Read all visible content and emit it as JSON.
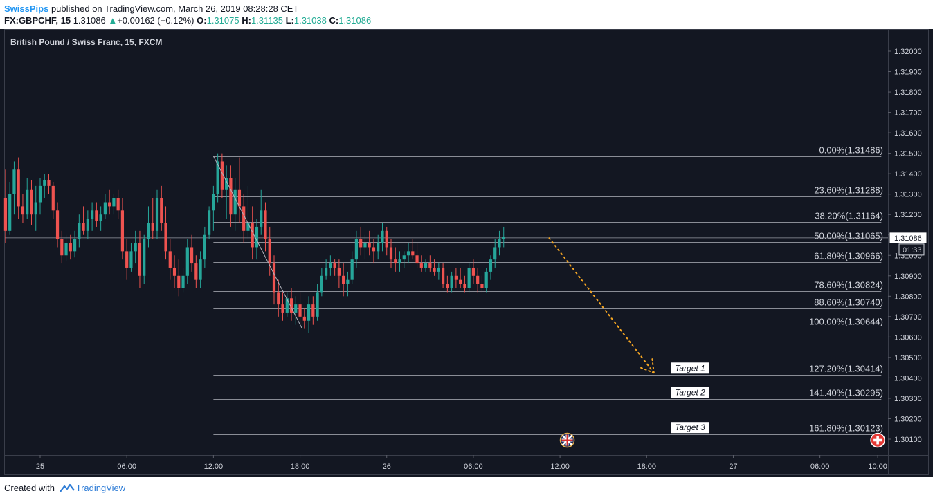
{
  "header": {
    "author": "SwissPips",
    "published": "published on TradingView.com, March 26, 2019 08:28:28 CET",
    "symbol": "FX:GBPCHF, 15",
    "last": "1.31086",
    "change": "+0.00162 (+0.12%)",
    "o_label": "O:",
    "o_value": "1.31075",
    "h_label": "H:",
    "h_value": "1.31135",
    "l_label": "L:",
    "l_value": "1.31038",
    "c_label": "C:",
    "c_value": "1.31086"
  },
  "footer": {
    "created_with": "Created with",
    "brand": "TradingView"
  },
  "colors": {
    "background": "#131722",
    "up": "#26a69a",
    "down": "#ef5350",
    "fib": "#8a8d96",
    "arrow": "#f5a623"
  },
  "chart_data": {
    "type": "candlestick",
    "title": "British Pound / Swiss Franc, 15, FXCM",
    "ylim": [
      1.3005,
      1.3215
    ],
    "y_ticks": [
      "1.32000",
      "1.31900",
      "1.31800",
      "1.31700",
      "1.31600",
      "1.31500",
      "1.31400",
      "1.31300",
      "1.31200",
      "1.31100",
      "1.31000",
      "1.30900",
      "1.30800",
      "1.30700",
      "1.30600",
      "1.30500",
      "1.30400",
      "1.30300",
      "1.30200",
      "1.30100"
    ],
    "x_ticks": [
      {
        "label": "25",
        "t": 0
      },
      {
        "label": "06:00",
        "t": 24
      },
      {
        "label": "12:00",
        "t": 48
      },
      {
        "label": "18:00",
        "t": 72
      },
      {
        "label": "26",
        "t": 96
      },
      {
        "label": "06:00",
        "t": 120
      },
      {
        "label": "12:00",
        "t": 144
      },
      {
        "label": "18:00",
        "t": 168
      },
      {
        "label": "27",
        "t": 192
      },
      {
        "label": "06:00",
        "t": 216
      },
      {
        "label": "10:00",
        "t": 232
      }
    ],
    "last_price": "1.31086",
    "countdown": "01:33",
    "fib_levels": [
      {
        "label": "0.00%(1.31486)",
        "price": 1.31486
      },
      {
        "label": "23.60%(1.31288)",
        "price": 1.31288
      },
      {
        "label": "38.20%(1.31164)",
        "price": 1.31164
      },
      {
        "label": "50.00%(1.31065)",
        "price": 1.31065
      },
      {
        "label": "61.80%(1.30966)",
        "price": 1.30966
      },
      {
        "label": "78.60%(1.30824)",
        "price": 1.30824
      },
      {
        "label": "88.60%(1.30740)",
        "price": 1.3074
      },
      {
        "label": "100.00%(1.30644)",
        "price": 1.30644
      },
      {
        "label": "127.20%(1.30414)",
        "price": 1.30414
      },
      {
        "label": "141.40%(1.30295)",
        "price": 1.30295
      },
      {
        "label": "161.80%(1.30123)",
        "price": 1.30123
      }
    ],
    "fib_start_t": 48,
    "fib_end_t": 233,
    "trend_line": {
      "from": {
        "t": 48,
        "price": 1.31486
      },
      "to": {
        "t": 72.5,
        "price": 1.30644
      }
    },
    "targets": [
      {
        "label": "Target 1",
        "price": 1.30414
      },
      {
        "label": "Target 2",
        "price": 1.30295
      },
      {
        "label": "Target 3",
        "price": 1.30123
      }
    ],
    "projection": {
      "from": {
        "t": 141,
        "price": 1.31085
      },
      "to": {
        "t": 170,
        "price": 1.30425
      }
    },
    "events": [
      {
        "name": "uk-flag-icon",
        "t": 146,
        "price": 1.30095
      },
      {
        "name": "swiss-flag-icon",
        "t": 232,
        "price": 1.30095
      }
    ],
    "candles": [
      [
        -9.6,
        1.3128,
        1.3142,
        1.3106,
        1.3112
      ],
      [
        -8.4,
        1.3112,
        1.3136,
        1.311,
        1.313
      ],
      [
        -7.2,
        1.313,
        1.3146,
        1.312,
        1.3142
      ],
      [
        -6.0,
        1.3142,
        1.3148,
        1.3118,
        1.3124
      ],
      [
        -4.8,
        1.3124,
        1.313,
        1.3116,
        1.312
      ],
      [
        -3.6,
        1.312,
        1.3138,
        1.3118,
        1.3132
      ],
      [
        -2.4,
        1.3132,
        1.3137,
        1.3115,
        1.312
      ],
      [
        -1.2,
        1.312,
        1.3134,
        1.3112,
        1.3126
      ],
      [
        0.0,
        1.3126,
        1.3138,
        1.312,
        1.3134
      ],
      [
        1.2,
        1.3134,
        1.314,
        1.3128,
        1.3137
      ],
      [
        2.4,
        1.3137,
        1.314,
        1.313,
        1.3134
      ],
      [
        3.6,
        1.3134,
        1.3136,
        1.3118,
        1.3122
      ],
      [
        4.8,
        1.3122,
        1.3126,
        1.3104,
        1.3108
      ],
      [
        6.0,
        1.3108,
        1.3112,
        1.3096,
        1.31
      ],
      [
        7.2,
        1.31,
        1.311,
        1.3097,
        1.3106
      ],
      [
        8.4,
        1.3106,
        1.311,
        1.3098,
        1.3102
      ],
      [
        9.6,
        1.3102,
        1.3112,
        1.3099,
        1.3108
      ],
      [
        10.8,
        1.3108,
        1.312,
        1.3104,
        1.3116
      ],
      [
        12.0,
        1.3116,
        1.3124,
        1.311,
        1.3112
      ],
      [
        13.2,
        1.3112,
        1.3122,
        1.3108,
        1.3118
      ],
      [
        14.4,
        1.3118,
        1.3126,
        1.3112,
        1.3122
      ],
      [
        15.6,
        1.3122,
        1.3126,
        1.3114,
        1.3117
      ],
      [
        16.8,
        1.3117,
        1.3124,
        1.3112,
        1.312
      ],
      [
        18.0,
        1.312,
        1.313,
        1.3118,
        1.3126
      ],
      [
        19.2,
        1.3126,
        1.3132,
        1.312,
        1.3124
      ],
      [
        20.4,
        1.3124,
        1.313,
        1.312,
        1.3128
      ],
      [
        21.6,
        1.3128,
        1.3132,
        1.3118,
        1.3122
      ],
      [
        22.8,
        1.3122,
        1.3128,
        1.3098,
        1.3102
      ],
      [
        24.0,
        1.3102,
        1.3108,
        1.3088,
        1.3094
      ],
      [
        25.2,
        1.3094,
        1.3106,
        1.3092,
        1.3102
      ],
      [
        26.4,
        1.3102,
        1.3112,
        1.3096,
        1.3106
      ],
      [
        27.6,
        1.3106,
        1.3112,
        1.3084,
        1.309
      ],
      [
        28.8,
        1.309,
        1.311,
        1.3086,
        1.3108
      ],
      [
        30.0,
        1.3108,
        1.3124,
        1.3104,
        1.3116
      ],
      [
        31.2,
        1.3116,
        1.3128,
        1.3108,
        1.3112
      ],
      [
        32.4,
        1.3112,
        1.3132,
        1.3108,
        1.3128
      ],
      [
        33.6,
        1.3128,
        1.3134,
        1.3112,
        1.3116
      ],
      [
        34.8,
        1.3116,
        1.3124,
        1.3098,
        1.3102
      ],
      [
        36.0,
        1.3102,
        1.3108,
        1.3088,
        1.3094
      ],
      [
        37.2,
        1.3094,
        1.31,
        1.3084,
        1.309
      ],
      [
        38.4,
        1.309,
        1.3098,
        1.308,
        1.3084
      ],
      [
        39.6,
        1.3084,
        1.3094,
        1.3082,
        1.309
      ],
      [
        40.8,
        1.309,
        1.3108,
        1.3086,
        1.3104
      ],
      [
        42.0,
        1.3104,
        1.311,
        1.3092,
        1.3096
      ],
      [
        43.2,
        1.3096,
        1.31,
        1.3084,
        1.3088
      ],
      [
        44.4,
        1.3088,
        1.3102,
        1.3084,
        1.3098
      ],
      [
        45.6,
        1.3098,
        1.3114,
        1.3094,
        1.311
      ],
      [
        46.8,
        1.311,
        1.3124,
        1.3108,
        1.3122
      ],
      [
        48.0,
        1.3122,
        1.3134,
        1.3112,
        1.313
      ],
      [
        49.2,
        1.313,
        1.315,
        1.3126,
        1.3146
      ],
      [
        50.4,
        1.3146,
        1.315,
        1.3128,
        1.3132
      ],
      [
        51.6,
        1.3132,
        1.3144,
        1.3118,
        1.3138
      ],
      [
        52.8,
        1.3138,
        1.3144,
        1.3114,
        1.312
      ],
      [
        54.0,
        1.312,
        1.3138,
        1.3112,
        1.3132
      ],
      [
        55.2,
        1.3132,
        1.3148,
        1.3116,
        1.3124
      ],
      [
        56.4,
        1.3124,
        1.313,
        1.3106,
        1.3112
      ],
      [
        57.6,
        1.3112,
        1.3134,
        1.3108,
        1.3116
      ],
      [
        58.8,
        1.3116,
        1.3124,
        1.3098,
        1.3104
      ],
      [
        60.0,
        1.3104,
        1.3118,
        1.3098,
        1.3114
      ],
      [
        61.2,
        1.3114,
        1.3132,
        1.311,
        1.3122
      ],
      [
        62.4,
        1.3122,
        1.3126,
        1.3102,
        1.3108
      ],
      [
        63.6,
        1.3108,
        1.3114,
        1.309,
        1.3096
      ],
      [
        64.8,
        1.3096,
        1.31,
        1.3076,
        1.3082
      ],
      [
        66.0,
        1.3082,
        1.3088,
        1.307,
        1.3076
      ],
      [
        67.2,
        1.3076,
        1.3082,
        1.3068,
        1.3072
      ],
      [
        68.4,
        1.3072,
        1.3082,
        1.307,
        1.3079
      ],
      [
        69.6,
        1.3079,
        1.3084,
        1.3068,
        1.3072
      ],
      [
        70.8,
        1.3072,
        1.308,
        1.3066,
        1.3076
      ],
      [
        72.0,
        1.3076,
        1.3082,
        1.3066,
        1.307
      ],
      [
        73.2,
        1.307,
        1.3074,
        1.3064,
        1.3068
      ],
      [
        74.4,
        1.3068,
        1.308,
        1.3062,
        1.3076
      ],
      [
        75.6,
        1.3076,
        1.308,
        1.3066,
        1.307
      ],
      [
        76.8,
        1.307,
        1.3086,
        1.3068,
        1.3082
      ],
      [
        78.0,
        1.3082,
        1.3094,
        1.308,
        1.309
      ],
      [
        79.2,
        1.309,
        1.3098,
        1.3088,
        1.3094
      ],
      [
        80.4,
        1.3094,
        1.31,
        1.309,
        1.3096
      ],
      [
        81.6,
        1.3096,
        1.3098,
        1.309,
        1.3094
      ],
      [
        82.8,
        1.3094,
        1.3098,
        1.3084,
        1.309
      ],
      [
        84.0,
        1.309,
        1.3096,
        1.308,
        1.3086
      ],
      [
        85.2,
        1.3086,
        1.3092,
        1.308,
        1.3088
      ],
      [
        86.4,
        1.3088,
        1.3102,
        1.3086,
        1.3098
      ],
      [
        87.6,
        1.3098,
        1.3112,
        1.3094,
        1.3108
      ],
      [
        88.8,
        1.3108,
        1.3114,
        1.31,
        1.3104
      ],
      [
        90.0,
        1.3104,
        1.311,
        1.3098,
        1.3106
      ],
      [
        91.2,
        1.3106,
        1.3112,
        1.31,
        1.3104
      ],
      [
        92.4,
        1.3104,
        1.3108,
        1.3096,
        1.3102
      ],
      [
        93.6,
        1.3102,
        1.311,
        1.3098,
        1.3106
      ],
      [
        94.8,
        1.3106,
        1.3116,
        1.3102,
        1.3112
      ],
      [
        96.0,
        1.3112,
        1.3114,
        1.31,
        1.3104
      ],
      [
        97.2,
        1.3104,
        1.3108,
        1.3094,
        1.3098
      ],
      [
        98.4,
        1.3098,
        1.3104,
        1.3092,
        1.3096
      ],
      [
        99.6,
        1.3096,
        1.3102,
        1.3092,
        1.3098
      ],
      [
        100.8,
        1.3098,
        1.3102,
        1.3094,
        1.31
      ],
      [
        102.0,
        1.31,
        1.3106,
        1.3096,
        1.3102
      ],
      [
        103.2,
        1.3102,
        1.3108,
        1.3098,
        1.31
      ],
      [
        104.4,
        1.31,
        1.3106,
        1.3094,
        1.3096
      ],
      [
        105.6,
        1.3096,
        1.31,
        1.3092,
        1.3094
      ],
      [
        106.8,
        1.3094,
        1.3098,
        1.3092,
        1.3096
      ],
      [
        108.0,
        1.3096,
        1.31,
        1.3092,
        1.3094
      ],
      [
        109.2,
        1.3094,
        1.3098,
        1.309,
        1.3092
      ],
      [
        110.4,
        1.3092,
        1.3096,
        1.3088,
        1.3094
      ],
      [
        111.6,
        1.3094,
        1.3096,
        1.3084,
        1.3086
      ],
      [
        112.8,
        1.3086,
        1.309,
        1.3082,
        1.3084
      ],
      [
        114.0,
        1.3084,
        1.3092,
        1.3082,
        1.309
      ],
      [
        115.2,
        1.309,
        1.3094,
        1.3084,
        1.3088
      ],
      [
        116.4,
        1.3088,
        1.3094,
        1.3084,
        1.3086
      ],
      [
        117.6,
        1.3086,
        1.309,
        1.3082,
        1.3084
      ],
      [
        118.8,
        1.3084,
        1.3096,
        1.3082,
        1.3094
      ],
      [
        120.0,
        1.3094,
        1.3098,
        1.3086,
        1.309
      ],
      [
        121.2,
        1.309,
        1.3094,
        1.3082,
        1.3086
      ],
      [
        122.4,
        1.3086,
        1.309,
        1.3082,
        1.3084
      ],
      [
        123.6,
        1.3084,
        1.3094,
        1.3082,
        1.3092
      ],
      [
        124.8,
        1.3092,
        1.31,
        1.3088,
        1.3098
      ],
      [
        126.0,
        1.3098,
        1.3108,
        1.3094,
        1.3104
      ],
      [
        127.2,
        1.3104,
        1.3112,
        1.31,
        1.3108
      ],
      [
        128.4,
        1.3108,
        1.3114,
        1.3104,
        1.3109
      ]
    ]
  }
}
